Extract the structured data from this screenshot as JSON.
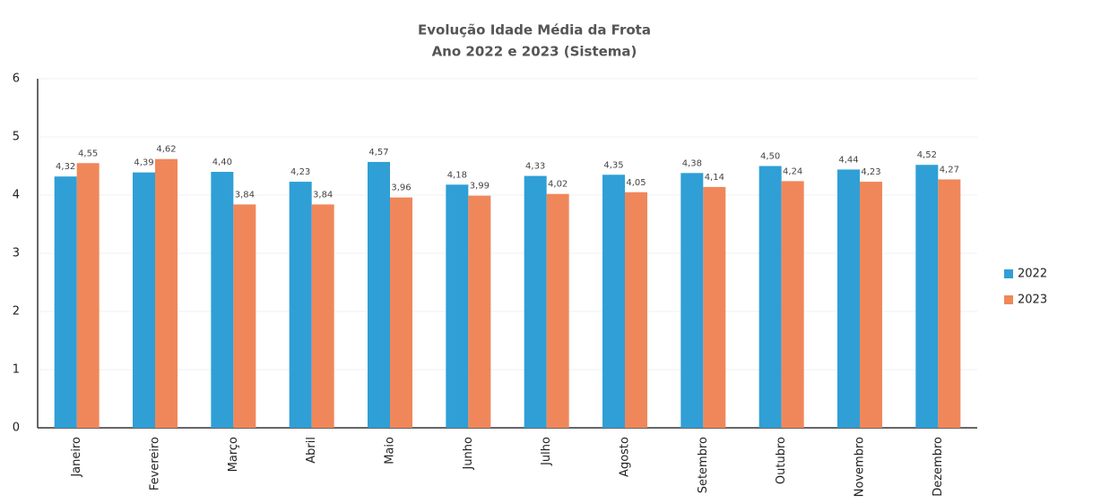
{
  "chart_data": {
    "type": "bar",
    "title": "Evolução Idade Média da Frota",
    "subtitle": "Ano 2022 e 2023 (Sistema)",
    "categories": [
      "Janeiro",
      "Fevereiro",
      "Março",
      "Abril",
      "Maio",
      "Junho",
      "Julho",
      "Agosto",
      "Setembro",
      "Outubro",
      "Novembro",
      "Dezembro"
    ],
    "series": [
      {
        "name": "2022",
        "color": "#2f9fd6",
        "values": [
          4.32,
          4.39,
          4.4,
          4.23,
          4.57,
          4.18,
          4.33,
          4.35,
          4.38,
          4.5,
          4.44,
          4.52
        ],
        "value_labels": [
          "4,32",
          "4,39",
          "4,40",
          "4,23",
          "4,57",
          "4,18",
          "4,33",
          "4,35",
          "4,38",
          "4,50",
          "4,44",
          "4,52"
        ]
      },
      {
        "name": "2023",
        "color": "#f0875a",
        "values": [
          4.55,
          4.62,
          3.84,
          3.84,
          3.96,
          3.99,
          4.02,
          4.05,
          4.14,
          4.24,
          4.23,
          4.27
        ],
        "value_labels": [
          "4,55",
          "4,62",
          "3,84",
          "3,84",
          "3,96",
          "3,99",
          "4,02",
          "4,05",
          "4,14",
          "4,24",
          "4,23",
          "4,27"
        ]
      }
    ],
    "ylim": [
      0,
      6
    ],
    "yticks": [
      0,
      1,
      2,
      3,
      4,
      5,
      6
    ],
    "grid": true,
    "legend": "right"
  }
}
